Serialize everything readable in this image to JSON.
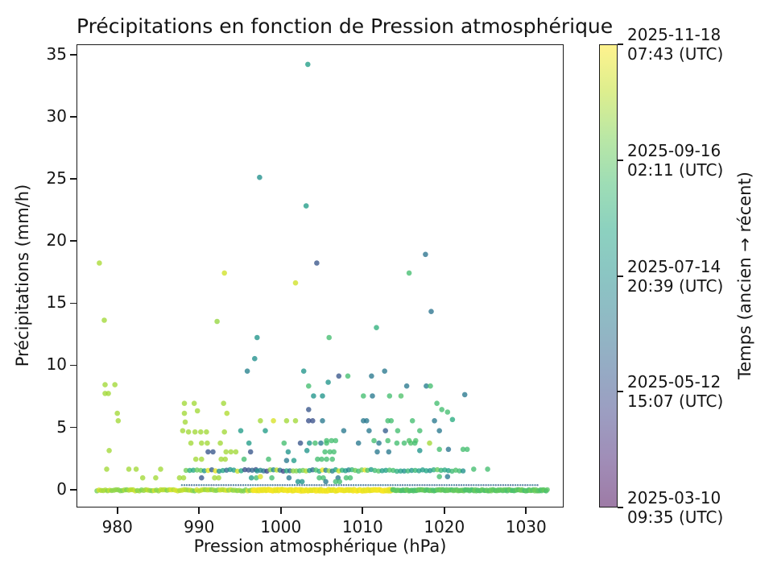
{
  "chart_data": {
    "type": "scatter",
    "title": "Précipitations en fonction de Pression atmosphérique",
    "xlabel": "Pression atmosphérique (hPa)",
    "ylabel": "Précipitations (mm/h)",
    "xlim": [
      975.0,
      1034.6
    ],
    "ylim": [
      -1.45,
      35.85
    ],
    "x_ticks": [
      980,
      990,
      1000,
      1010,
      1020,
      1030
    ],
    "y_ticks": [
      0,
      5,
      10,
      15,
      20,
      25,
      30,
      35
    ],
    "grid": false,
    "point_alpha": 0.78,
    "colorbar": {
      "label": "Temps (ancien → récent)",
      "alpha": 0.52,
      "colormap": "viridis",
      "tick_labels": [
        [
          "2025-11-18",
          "07:43 (UTC)"
        ],
        [
          "2025-09-16",
          "02:11 (UTC)"
        ],
        [
          "2025-07-14",
          "20:39 (UTC)"
        ],
        [
          "2025-05-12",
          "15:07 (UTC)"
        ],
        [
          "2025-03-10",
          "09:35 (UTC)"
        ]
      ]
    },
    "viridis_stops": [
      [
        68,
        1,
        84
      ],
      [
        72,
        36,
        117
      ],
      [
        64,
        67,
        135
      ],
      [
        52,
        94,
        141
      ],
      [
        41,
        120,
        142
      ],
      [
        32,
        144,
        140
      ],
      [
        34,
        167,
        132
      ],
      [
        68,
        190,
        112
      ],
      [
        122,
        209,
        81
      ],
      [
        189,
        222,
        38
      ],
      [
        253,
        231,
        37
      ]
    ],
    "points_xyt": [
      [
        1003.2,
        34.3,
        0.56
      ],
      [
        997.3,
        25.2,
        0.5
      ],
      [
        1003.0,
        22.9,
        0.55
      ],
      [
        1017.6,
        19.0,
        0.38
      ],
      [
        1004.3,
        18.3,
        0.27
      ],
      [
        977.7,
        18.3,
        0.87
      ],
      [
        993.0,
        17.5,
        0.93
      ],
      [
        1015.6,
        17.5,
        0.7
      ],
      [
        1001.7,
        16.7,
        0.93
      ],
      [
        1018.3,
        14.4,
        0.38
      ],
      [
        978.3,
        13.7,
        0.86
      ],
      [
        992.1,
        13.6,
        0.84
      ],
      [
        1011.6,
        13.1,
        0.64
      ],
      [
        997.0,
        12.3,
        0.52
      ],
      [
        1005.8,
        12.3,
        0.7
      ],
      [
        996.7,
        10.6,
        0.5
      ],
      [
        995.8,
        9.6,
        0.44
      ],
      [
        1002.7,
        9.6,
        0.52
      ],
      [
        1012.6,
        9.6,
        0.4
      ],
      [
        1007.0,
        9.2,
        0.27
      ],
      [
        1008.1,
        9.2,
        0.7
      ],
      [
        1011.0,
        9.2,
        0.4
      ],
      [
        1005.7,
        8.7,
        0.52
      ],
      [
        978.4,
        8.5,
        0.86
      ],
      [
        979.6,
        8.5,
        0.86
      ],
      [
        1003.3,
        8.4,
        0.7
      ],
      [
        1015.3,
        8.4,
        0.4
      ],
      [
        1017.7,
        8.4,
        0.42
      ],
      [
        1018.2,
        8.4,
        0.7
      ],
      [
        978.4,
        7.8,
        0.86
      ],
      [
        978.8,
        7.8,
        0.86
      ],
      [
        1003.9,
        7.6,
        0.52
      ],
      [
        1005.0,
        7.6,
        0.52
      ],
      [
        1010.0,
        7.6,
        0.7
      ],
      [
        1011.1,
        7.6,
        0.4
      ],
      [
        1013.2,
        7.6,
        0.7
      ],
      [
        1014.6,
        7.6,
        0.72
      ],
      [
        1022.4,
        7.7,
        0.4
      ],
      [
        988.1,
        7.0,
        0.86
      ],
      [
        989.3,
        7.0,
        0.86
      ],
      [
        992.9,
        7.0,
        0.86
      ],
      [
        1019.0,
        7.0,
        0.7
      ],
      [
        979.9,
        6.2,
        0.86
      ],
      [
        988.1,
        6.2,
        0.86
      ],
      [
        989.7,
        6.4,
        0.86
      ],
      [
        993.3,
        6.2,
        0.88
      ],
      [
        1003.3,
        6.5,
        0.27
      ],
      [
        1019.6,
        6.5,
        0.7
      ],
      [
        1020.3,
        6.3,
        0.7
      ],
      [
        980.0,
        5.6,
        0.86
      ],
      [
        988.2,
        5.5,
        0.86
      ],
      [
        997.4,
        5.6,
        0.86
      ],
      [
        999.0,
        5.6,
        0.94
      ],
      [
        1000.6,
        5.6,
        0.86
      ],
      [
        1001.7,
        5.6,
        0.86
      ],
      [
        1003.3,
        5.6,
        0.25
      ],
      [
        1003.8,
        5.6,
        0.25
      ],
      [
        1005.0,
        5.6,
        0.4
      ],
      [
        1010.0,
        5.6,
        0.4
      ],
      [
        1010.4,
        5.6,
        0.4
      ],
      [
        1013.0,
        5.6,
        0.7
      ],
      [
        1013.4,
        5.6,
        0.7
      ],
      [
        1016.0,
        5.6,
        0.7
      ],
      [
        1018.7,
        5.6,
        0.4
      ],
      [
        1020.9,
        5.7,
        0.62
      ],
      [
        987.9,
        4.8,
        0.86
      ],
      [
        988.6,
        4.7,
        0.86
      ],
      [
        989.4,
        4.7,
        0.86
      ],
      [
        990.1,
        4.7,
        0.86
      ],
      [
        990.8,
        4.7,
        0.86
      ],
      [
        993.0,
        4.7,
        0.86
      ],
      [
        995.0,
        4.8,
        0.55
      ],
      [
        998.0,
        4.8,
        0.55
      ],
      [
        1007.6,
        4.8,
        0.4
      ],
      [
        1010.7,
        4.8,
        0.4
      ],
      [
        1012.7,
        4.8,
        0.3
      ],
      [
        1014.2,
        4.8,
        0.7
      ],
      [
        1016.9,
        4.8,
        0.7
      ],
      [
        1019.3,
        4.8,
        0.4
      ],
      [
        1005.5,
        4.0,
        0.7
      ],
      [
        1006.1,
        4.0,
        0.7
      ],
      [
        1006.6,
        4.0,
        0.7
      ],
      [
        1011.3,
        4.0,
        0.7
      ],
      [
        1013.0,
        4.0,
        0.7
      ],
      [
        1015.6,
        4.0,
        0.72
      ],
      [
        1016.4,
        4.0,
        0.72
      ],
      [
        988.9,
        3.8,
        0.86
      ],
      [
        990.2,
        3.8,
        0.86
      ],
      [
        990.9,
        3.8,
        0.86
      ],
      [
        992.5,
        3.8,
        0.86
      ],
      [
        996.0,
        3.8,
        0.55
      ],
      [
        1000.3,
        3.8,
        0.7
      ],
      [
        1002.3,
        3.8,
        0.27
      ],
      [
        1003.4,
        3.8,
        0.52
      ],
      [
        1004.1,
        3.8,
        0.7
      ],
      [
        1004.8,
        3.8,
        0.4
      ],
      [
        1005.5,
        3.8,
        0.7
      ],
      [
        1009.4,
        3.8,
        0.4
      ],
      [
        1011.9,
        3.8,
        0.4
      ],
      [
        1014.1,
        3.8,
        0.7
      ],
      [
        1015.0,
        3.8,
        0.7
      ],
      [
        1015.8,
        3.8,
        0.72
      ],
      [
        1016.3,
        3.8,
        0.7
      ],
      [
        1018.1,
        3.8,
        0.86
      ],
      [
        978.9,
        3.2,
        0.86
      ],
      [
        991.0,
        3.1,
        0.27
      ],
      [
        991.6,
        3.1,
        0.27
      ],
      [
        993.2,
        3.1,
        0.86
      ],
      [
        993.8,
        3.1,
        0.86
      ],
      [
        994.4,
        3.1,
        0.86
      ],
      [
        996.2,
        3.1,
        0.27
      ],
      [
        1000.8,
        3.1,
        0.52
      ],
      [
        1003.1,
        3.2,
        0.52
      ],
      [
        1005.3,
        3.1,
        0.7
      ],
      [
        1005.9,
        3.1,
        0.7
      ],
      [
        1006.4,
        3.1,
        0.7
      ],
      [
        1011.7,
        3.1,
        0.4
      ],
      [
        1013.1,
        3.1,
        0.4
      ],
      [
        1016.9,
        3.2,
        0.52
      ],
      [
        1019.3,
        3.3,
        0.7
      ],
      [
        1020.4,
        3.3,
        0.38
      ],
      [
        1022.2,
        3.3,
        0.7
      ],
      [
        1022.7,
        3.3,
        0.7
      ],
      [
        989.5,
        2.5,
        0.86
      ],
      [
        990.2,
        2.5,
        0.86
      ],
      [
        992.6,
        2.5,
        0.86
      ],
      [
        993.1,
        2.5,
        0.86
      ],
      [
        995.4,
        2.5,
        0.7
      ],
      [
        998.4,
        2.5,
        0.7
      ],
      [
        1000.6,
        2.4,
        0.4
      ],
      [
        1001.5,
        2.4,
        0.55
      ],
      [
        1004.4,
        2.5,
        0.7
      ],
      [
        1004.9,
        2.5,
        0.7
      ],
      [
        1005.5,
        2.5,
        0.7
      ],
      [
        1006.2,
        2.5,
        0.7
      ],
      [
        978.6,
        1.7,
        0.86
      ],
      [
        981.3,
        1.7,
        0.86
      ],
      [
        982.2,
        1.7,
        0.86
      ],
      [
        985.2,
        1.7,
        0.86
      ],
      [
        1023.5,
        1.7,
        0.7
      ],
      [
        1025.2,
        1.7,
        0.7
      ],
      [
        983.0,
        1.0,
        0.86
      ],
      [
        984.6,
        1.0,
        0.86
      ],
      [
        987.5,
        1.0,
        0.86
      ],
      [
        988.0,
        1.0,
        0.86
      ],
      [
        990.2,
        1.0,
        0.27
      ],
      [
        991.8,
        1.0,
        0.86
      ],
      [
        992.3,
        1.0,
        0.86
      ],
      [
        996.3,
        1.0,
        0.55
      ],
      [
        996.9,
        1.0,
        0.7
      ],
      [
        997.4,
        1.1,
        0.94
      ],
      [
        998.8,
        1.0,
        0.7
      ],
      [
        1000.9,
        1.0,
        0.4
      ],
      [
        1004.6,
        1.0,
        0.7
      ],
      [
        1005.1,
        1.0,
        0.7
      ],
      [
        1006.9,
        1.0,
        0.4
      ],
      [
        1007.9,
        1.0,
        0.7
      ],
      [
        1008.4,
        1.0,
        0.7
      ],
      [
        1019.3,
        1.1,
        0.7
      ],
      [
        1020.3,
        1.1,
        0.4
      ],
      [
        1002.0,
        0.7,
        0.52
      ],
      [
        1002.5,
        0.7,
        0.52
      ],
      [
        1005.4,
        0.7,
        0.4
      ],
      [
        1006.6,
        0.7,
        0.7
      ],
      [
        1007.1,
        0.7,
        0.7
      ]
    ],
    "bands": [
      {
        "name": "baseline-left",
        "y": 0.0,
        "x_start": 977.4,
        "x_end": 996.5,
        "step": 0.26,
        "t_min": 0.78,
        "t_max": 0.95,
        "r": 3.2,
        "jitter_y": 0.05
      },
      {
        "name": "baseline-mid",
        "y": 0.0,
        "x_start": 996.5,
        "x_end": 1013.6,
        "step": 0.12,
        "t_min": 0.95,
        "t_max": 1.0,
        "r": 3.4,
        "jitter_y": 0.06
      },
      {
        "name": "baseline-right",
        "y": 0.0,
        "x_start": 1013.6,
        "x_end": 1032.6,
        "step": 0.14,
        "t_min": 0.7,
        "t_max": 0.78,
        "r": 3.2,
        "jitter_y": 0.05
      },
      {
        "name": "micro-dot-row",
        "y": 0.42,
        "x_start": 987.8,
        "x_end": 1031.5,
        "step": 0.3,
        "t_min": 0.28,
        "t_max": 0.38,
        "r": 1.2,
        "jitter_y": 0.0
      },
      {
        "name": "band-1p5-left",
        "y": 1.6,
        "x_start": 988.3,
        "x_end": 997.0,
        "step": 0.45,
        "t_min": 0.2,
        "t_max": 0.97,
        "r": 3.2,
        "jitter_y": 0.07
      },
      {
        "name": "band-1p5-mid",
        "y": 1.6,
        "x_start": 997.0,
        "x_end": 1010.5,
        "step": 0.4,
        "t_min": 0.2,
        "t_max": 1.0,
        "r": 3.2,
        "jitter_y": 0.07
      },
      {
        "name": "band-1p5-right",
        "y": 1.6,
        "x_start": 1010.5,
        "x_end": 1022.5,
        "step": 0.45,
        "t_min": 0.5,
        "t_max": 0.8,
        "r": 3.2,
        "jitter_y": 0.07
      }
    ]
  }
}
